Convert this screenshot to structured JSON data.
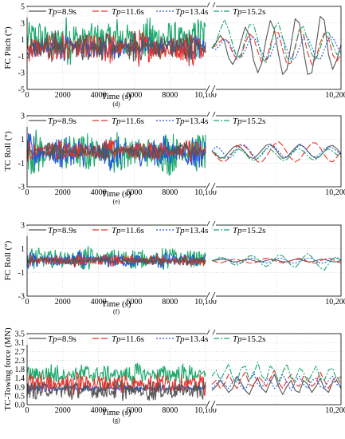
{
  "chart_data": [
    {
      "type": "line",
      "caption": "(d)",
      "ylabel": "FC Pitch (°)",
      "xlabel": "Time (s)",
      "ylim": [
        -5,
        5
      ],
      "yticks": [
        "-5",
        "-3",
        "-1",
        "1",
        "3",
        "5"
      ],
      "xticks_left": [
        "0",
        "2000",
        "4000",
        "6000",
        "8000",
        "10,100"
      ],
      "xticks_right": [
        "10,200"
      ],
      "x_break": true,
      "grid": true,
      "legend_position": "top",
      "series": [
        {
          "name": "Tp=8.9s",
          "color": "#555555",
          "dash": "solid",
          "band_left": [
            -2.0,
            2.3
          ],
          "right": [
            0,
            0.6,
            1.5,
            0.8,
            -1.2,
            -2.0,
            -1.0,
            0.8,
            2.5,
            1.5,
            -1.5,
            -3.0,
            -1.8,
            1.0,
            3.3,
            2.2,
            -0.8,
            -3.2,
            -2.6,
            0.4,
            3.5,
            3.0,
            -0.4,
            -3.2,
            -3.0,
            0.2,
            3.8,
            3.3,
            -0.8,
            -2.6,
            -1.4,
            0.4
          ]
        },
        {
          "name": "Tp=11.6s",
          "color": "#e8312a",
          "dash": "8,3",
          "band_left": [
            -2.5,
            2.4
          ],
          "right": [
            0,
            0.3,
            0.8,
            1.2,
            0.6,
            -0.6,
            -1.4,
            -1.0,
            0.6,
            1.7,
            1.2,
            -0.4,
            -1.8,
            -1.5,
            0.3,
            2.0,
            1.8,
            -0.2,
            -2.0,
            -1.8,
            0.0,
            2.2,
            1.6,
            -0.6,
            -2.0,
            -1.2,
            0.6,
            1.8,
            1.2,
            -0.8,
            -1.6,
            -0.8
          ]
        },
        {
          "name": "Tp=13.4s",
          "color": "#2255dd",
          "dash": "2,2",
          "band_left": [
            -1.6,
            1.6
          ],
          "right": [
            0,
            -0.2,
            0.4,
            1.0,
            0.8,
            -0.2,
            -1.0,
            -1.2,
            -0.3,
            0.9,
            1.3,
            0.6,
            -0.6,
            -1.4,
            -1.0,
            0.3,
            1.4,
            1.2,
            -0.2,
            -1.4,
            -1.3,
            0.0,
            1.3,
            1.3,
            0.1,
            -1.2,
            -1.4,
            -0.2,
            1.1,
            1.3,
            0.3,
            -0.8
          ]
        },
        {
          "name": "Tp=15.2s",
          "color": "#1aa86a",
          "dash": "7,2,2,2",
          "band_left": [
            -2.2,
            4.2
          ],
          "right": [
            0,
            0.8,
            2.2,
            3.4,
            2.2,
            0.4,
            -1.2,
            -0.8,
            1.0,
            2.8,
            2.8,
            1.0,
            -1.2,
            -1.8,
            -0.2,
            2.4,
            3.0,
            1.2,
            -1.2,
            -1.6,
            0.2,
            2.2,
            2.6,
            0.8,
            -0.8,
            -1.4,
            0.0,
            1.6,
            2.0,
            0.4,
            -0.8,
            -0.4
          ]
        }
      ]
    },
    {
      "type": "line",
      "caption": "(e)",
      "ylabel": "TC Roll (°)",
      "xlabel": "Time (s)",
      "ylim": [
        -3,
        3
      ],
      "yticks": [
        "-3",
        "-1",
        "1",
        "3"
      ],
      "xticks_left": [
        "0",
        "2000",
        "4000",
        "6000",
        "8000",
        "10,100"
      ],
      "xticks_right": [
        "10,200"
      ],
      "x_break": true,
      "grid": true,
      "legend_position": "top",
      "series": [
        {
          "name": "Tp=8.9s",
          "color": "#555555",
          "dash": "solid",
          "band_left": [
            -0.9,
            0.9
          ],
          "right": [
            0,
            -0.3,
            -0.6,
            -0.5,
            -0.1,
            0.3,
            0.5,
            0.3,
            -0.1,
            -0.5,
            -0.6,
            -0.3,
            0.1,
            0.5,
            0.6,
            0.3,
            -0.2,
            -0.6,
            -0.5,
            -0.1,
            0.3,
            0.6,
            0.4,
            0.0,
            -0.4,
            -0.6,
            -0.4,
            0.0,
            0.4,
            0.5,
            0.2,
            -0.2
          ]
        },
        {
          "name": "Tp=11.6s",
          "color": "#e8312a",
          "dash": "8,3",
          "band_left": [
            -1.0,
            1.1
          ],
          "right": [
            0,
            -0.4,
            -0.8,
            -0.9,
            -0.6,
            -0.1,
            0.4,
            0.6,
            0.4,
            0.0,
            -0.5,
            -0.9,
            -0.9,
            -0.5,
            0.1,
            0.6,
            0.8,
            0.5,
            -0.1,
            -0.6,
            -0.9,
            -0.7,
            -0.2,
            0.3,
            0.7,
            0.7,
            0.3,
            -0.3,
            -0.8,
            -0.9,
            -0.5,
            0.0
          ]
        },
        {
          "name": "Tp=13.4s",
          "color": "#2255dd",
          "dash": "2,2",
          "band_left": [
            -1.8,
            1.6
          ],
          "right": [
            0,
            0.4,
            0.2,
            -0.3,
            -0.6,
            -0.4,
            0.1,
            0.5,
            0.5,
            0.1,
            -0.4,
            -0.6,
            -0.3,
            0.2,
            0.5,
            0.4,
            0.0,
            -0.4,
            -0.5,
            -0.2,
            0.2,
            0.5,
            0.4,
            0.0,
            -0.4,
            -0.5,
            -0.2,
            0.2,
            0.4,
            0.3,
            0.0,
            -0.3
          ]
        },
        {
          "name": "Tp=15.2s",
          "color": "#1aa86a",
          "dash": "7,2,2,2",
          "band_left": [
            -2.2,
            2.0
          ],
          "right": [
            0,
            -0.2,
            -0.5,
            -0.6,
            -0.4,
            -0.1,
            0.2,
            0.1,
            -0.2,
            -0.6,
            -0.8,
            -0.6,
            -0.2,
            0.2,
            0.2,
            -0.1,
            -0.5,
            -0.8,
            -0.7,
            -0.3,
            0.1,
            0.2,
            0.0,
            -0.4,
            -0.7,
            -0.7,
            -0.4,
            0.0,
            0.2,
            0.0,
            -0.3,
            -0.5
          ]
        }
      ]
    },
    {
      "type": "line",
      "caption": "(f)",
      "ylabel": "FC Roll (°)",
      "xlabel": "Time (s)",
      "ylim": [
        -3,
        3
      ],
      "yticks": [
        "-3",
        "-1",
        "1",
        "3"
      ],
      "xticks_left": [
        "0",
        "2000",
        "4000",
        "6000",
        "8000",
        "10,100"
      ],
      "xticks_right": [
        "10,200"
      ],
      "x_break": true,
      "grid": true,
      "legend_position": "top",
      "series": [
        {
          "name": "Tp=8.9s",
          "color": "#555555",
          "dash": "solid",
          "band_left": [
            -0.4,
            0.4
          ],
          "right": [
            0,
            0.05,
            0.1,
            0.1,
            0.0,
            -0.1,
            -0.1,
            0.0,
            0.1,
            0.1,
            0.0,
            -0.1,
            -0.1,
            0.0,
            0.1,
            0.1,
            0.0,
            -0.1,
            -0.1,
            0.0,
            0.1,
            0.1,
            0.0,
            -0.1,
            -0.1,
            0.0,
            0.1,
            0.1,
            0.0,
            -0.1,
            -0.1,
            0.0
          ]
        },
        {
          "name": "Tp=11.6s",
          "color": "#e8312a",
          "dash": "8,3",
          "band_left": [
            -0.6,
            0.6
          ],
          "right": [
            0,
            -0.1,
            -0.2,
            -0.1,
            0.0,
            0.1,
            0.1,
            0.0,
            -0.1,
            -0.2,
            -0.2,
            -0.1,
            0.1,
            0.2,
            0.2,
            0.0,
            -0.1,
            -0.2,
            -0.1,
            0.0,
            0.1,
            0.2,
            0.1,
            -0.1,
            -0.2,
            -0.2,
            0.0,
            0.1,
            0.2,
            0.1,
            -0.1,
            -0.2
          ]
        },
        {
          "name": "Tp=13.4s",
          "color": "#2255dd",
          "dash": "2,2",
          "band_left": [
            -0.8,
            0.8
          ],
          "right": [
            0,
            0.1,
            0.2,
            0.2,
            0.1,
            -0.1,
            -0.2,
            -0.2,
            0.0,
            0.2,
            0.2,
            0.1,
            -0.1,
            -0.2,
            -0.1,
            0.1,
            0.2,
            0.2,
            0.0,
            -0.2,
            -0.2,
            -0.1,
            0.1,
            0.2,
            0.2,
            0.0,
            -0.2,
            -0.2,
            0.0,
            0.2,
            0.2,
            0.0
          ]
        },
        {
          "name": "Tp=15.2s",
          "color": "#1aa86a",
          "dash": "7,2,2,2",
          "band_left": [
            -1.0,
            1.3
          ],
          "right": [
            0,
            0.1,
            0.3,
            0.2,
            0.0,
            -0.3,
            -0.4,
            -0.2,
            0.1,
            0.4,
            0.4,
            0.1,
            -0.3,
            -0.5,
            -0.3,
            0.1,
            0.5,
            0.4,
            0.0,
            -0.4,
            -0.6,
            -0.2,
            0.3,
            0.6,
            0.3,
            -0.2,
            -0.6,
            -0.8,
            -0.3,
            0.2,
            0.3,
            0.0
          ]
        }
      ]
    },
    {
      "type": "line",
      "caption": "(g)",
      "ylabel": "TC-Towing force (MN)",
      "xlabel": "Time (s)",
      "ylim": [
        0,
        3.5
      ],
      "yticks": [
        "0.0",
        "0.5",
        "0.9",
        "1.4",
        "1.8",
        "2.3",
        "2.7",
        "3.1",
        "3.5"
      ],
      "xticks_left": [
        "0",
        "2000",
        "4000",
        "6000",
        "8000",
        "10,100"
      ],
      "xticks_right": [
        "10,200"
      ],
      "x_break": true,
      "grid": true,
      "legend_position": "top",
      "series": [
        {
          "name": "Tp=8.9s",
          "color": "#555555",
          "dash": "solid",
          "band_left": [
            0.1,
            1.3
          ],
          "right": [
            0.7,
            0.9,
            1.2,
            0.9,
            0.6,
            0.8,
            1.4,
            1.1,
            0.7,
            0.5,
            1.0,
            1.3,
            0.8,
            0.6,
            1.1,
            1.5,
            0.9,
            0.5,
            0.9,
            1.2,
            0.7,
            0.6,
            1.2,
            1.0,
            0.6,
            0.9,
            1.3,
            0.8,
            0.6,
            1.1,
            1.2,
            0.8
          ]
        },
        {
          "name": "Tp=11.6s",
          "color": "#e8312a",
          "dash": "8,3",
          "band_left": [
            0.4,
            1.7
          ],
          "right": [
            1.0,
            1.2,
            0.8,
            1.0,
            1.5,
            1.1,
            0.8,
            1.3,
            1.6,
            1.0,
            0.9,
            1.4,
            1.2,
            0.9,
            1.3,
            1.7,
            1.1,
            0.8,
            1.2,
            1.5,
            1.0,
            0.9,
            1.4,
            1.3,
            0.9,
            1.1,
            1.6,
            1.2,
            0.8,
            1.2,
            1.4,
            1.0
          ]
        },
        {
          "name": "Tp=13.4s",
          "color": "#2255dd",
          "dash": "2,2",
          "band_left": [
            0.6,
            1.0
          ],
          "right": [
            0.8,
            1.0,
            1.3,
            1.0,
            0.8,
            1.1,
            1.4,
            0.9,
            0.7,
            1.2,
            1.6,
            1.0,
            0.8,
            1.3,
            1.2,
            0.8,
            1.0,
            1.5,
            1.1,
            0.7,
            1.1,
            1.4,
            1.0,
            0.8,
            1.2,
            1.3,
            0.9,
            0.8,
            1.2,
            1.4,
            1.0,
            0.9
          ]
        },
        {
          "name": "Tp=15.2s",
          "color": "#1aa86a",
          "dash": "7,2,2,2",
          "band_left": [
            0.9,
            2.1
          ],
          "right": [
            1.4,
            1.7,
            1.2,
            1.6,
            2.0,
            1.3,
            1.1,
            1.8,
            1.9,
            1.2,
            1.5,
            2.1,
            1.4,
            1.2,
            1.9,
            1.7,
            1.1,
            1.6,
            2.0,
            1.3,
            1.2,
            1.8,
            1.6,
            1.1,
            1.5,
            1.9,
            1.3,
            1.2,
            1.7,
            1.8,
            1.2,
            1.4
          ]
        }
      ]
    }
  ]
}
